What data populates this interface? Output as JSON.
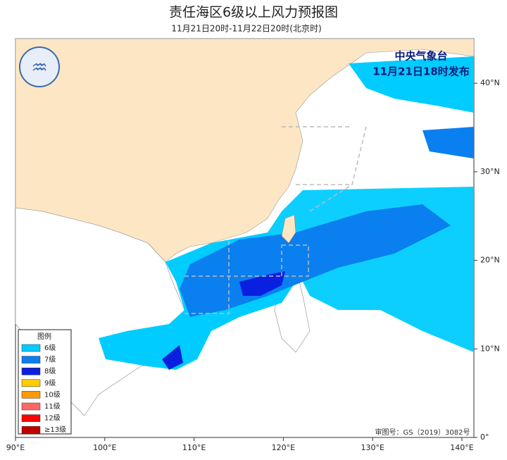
{
  "header": {
    "title": "责任海区6级以上风力预报图",
    "subtitle": "11月21日20时-11月22日20时(北京时)"
  },
  "issuer": {
    "name": "中央气象台",
    "time": "11月21日18时发布"
  },
  "map": {
    "xticks": [
      {
        "value": 90,
        "label": "90°E"
      },
      {
        "value": 100,
        "label": "100°E"
      },
      {
        "value": 110,
        "label": "110°E"
      },
      {
        "value": 120,
        "label": "120°E"
      },
      {
        "value": 130,
        "label": "130°E"
      },
      {
        "value": 140,
        "label": "140°E"
      }
    ],
    "yticks": [
      {
        "value": 0,
        "label": "0°"
      },
      {
        "value": 10,
        "label": "10°N"
      },
      {
        "value": 20,
        "label": "20°N"
      },
      {
        "value": 30,
        "label": "30°N"
      },
      {
        "value": 40,
        "label": "40°N"
      }
    ]
  },
  "legend": {
    "title": "图例",
    "items": [
      {
        "label": "6级",
        "color": "#00ccff"
      },
      {
        "label": "7级",
        "color": "#0a7ff0"
      },
      {
        "label": "8级",
        "color": "#0a20e0"
      },
      {
        "label": "9级",
        "color": "#ffcc00"
      },
      {
        "label": "10级",
        "color": "#ff9900"
      },
      {
        "label": "11级",
        "color": "#ff6666"
      },
      {
        "label": "12级",
        "color": "#ff0000"
      },
      {
        "label": "≥13级",
        "color": "#c00000"
      }
    ]
  },
  "footer": {
    "approval": "审图号：GS（2019）3082号"
  }
}
